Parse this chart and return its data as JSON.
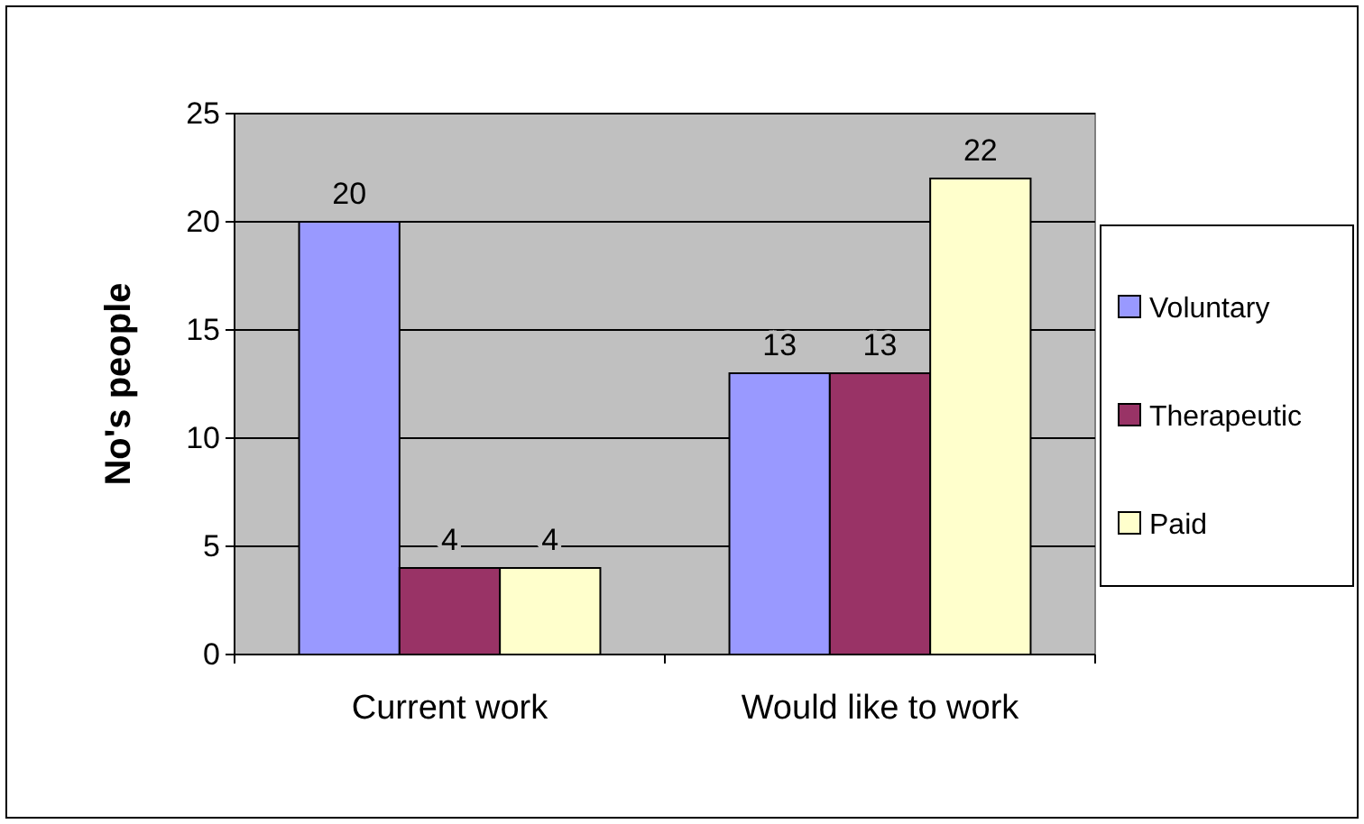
{
  "chart_data": {
    "type": "bar",
    "ylabel": "No's people",
    "categories": [
      "Current work",
      "Would like to work"
    ],
    "series": [
      {
        "name": "Voluntary",
        "color": "#9999ff",
        "values": [
          20,
          13
        ]
      },
      {
        "name": "Therapeutic",
        "color": "#993366",
        "values": [
          4,
          13
        ]
      },
      {
        "name": "Paid",
        "color": "#ffffcc",
        "values": [
          4,
          22
        ]
      }
    ],
    "ylim": [
      0,
      25
    ],
    "yticks": [
      0,
      5,
      10,
      15,
      20,
      25
    ],
    "grid": "y",
    "legend": "right",
    "data_labels": true
  }
}
